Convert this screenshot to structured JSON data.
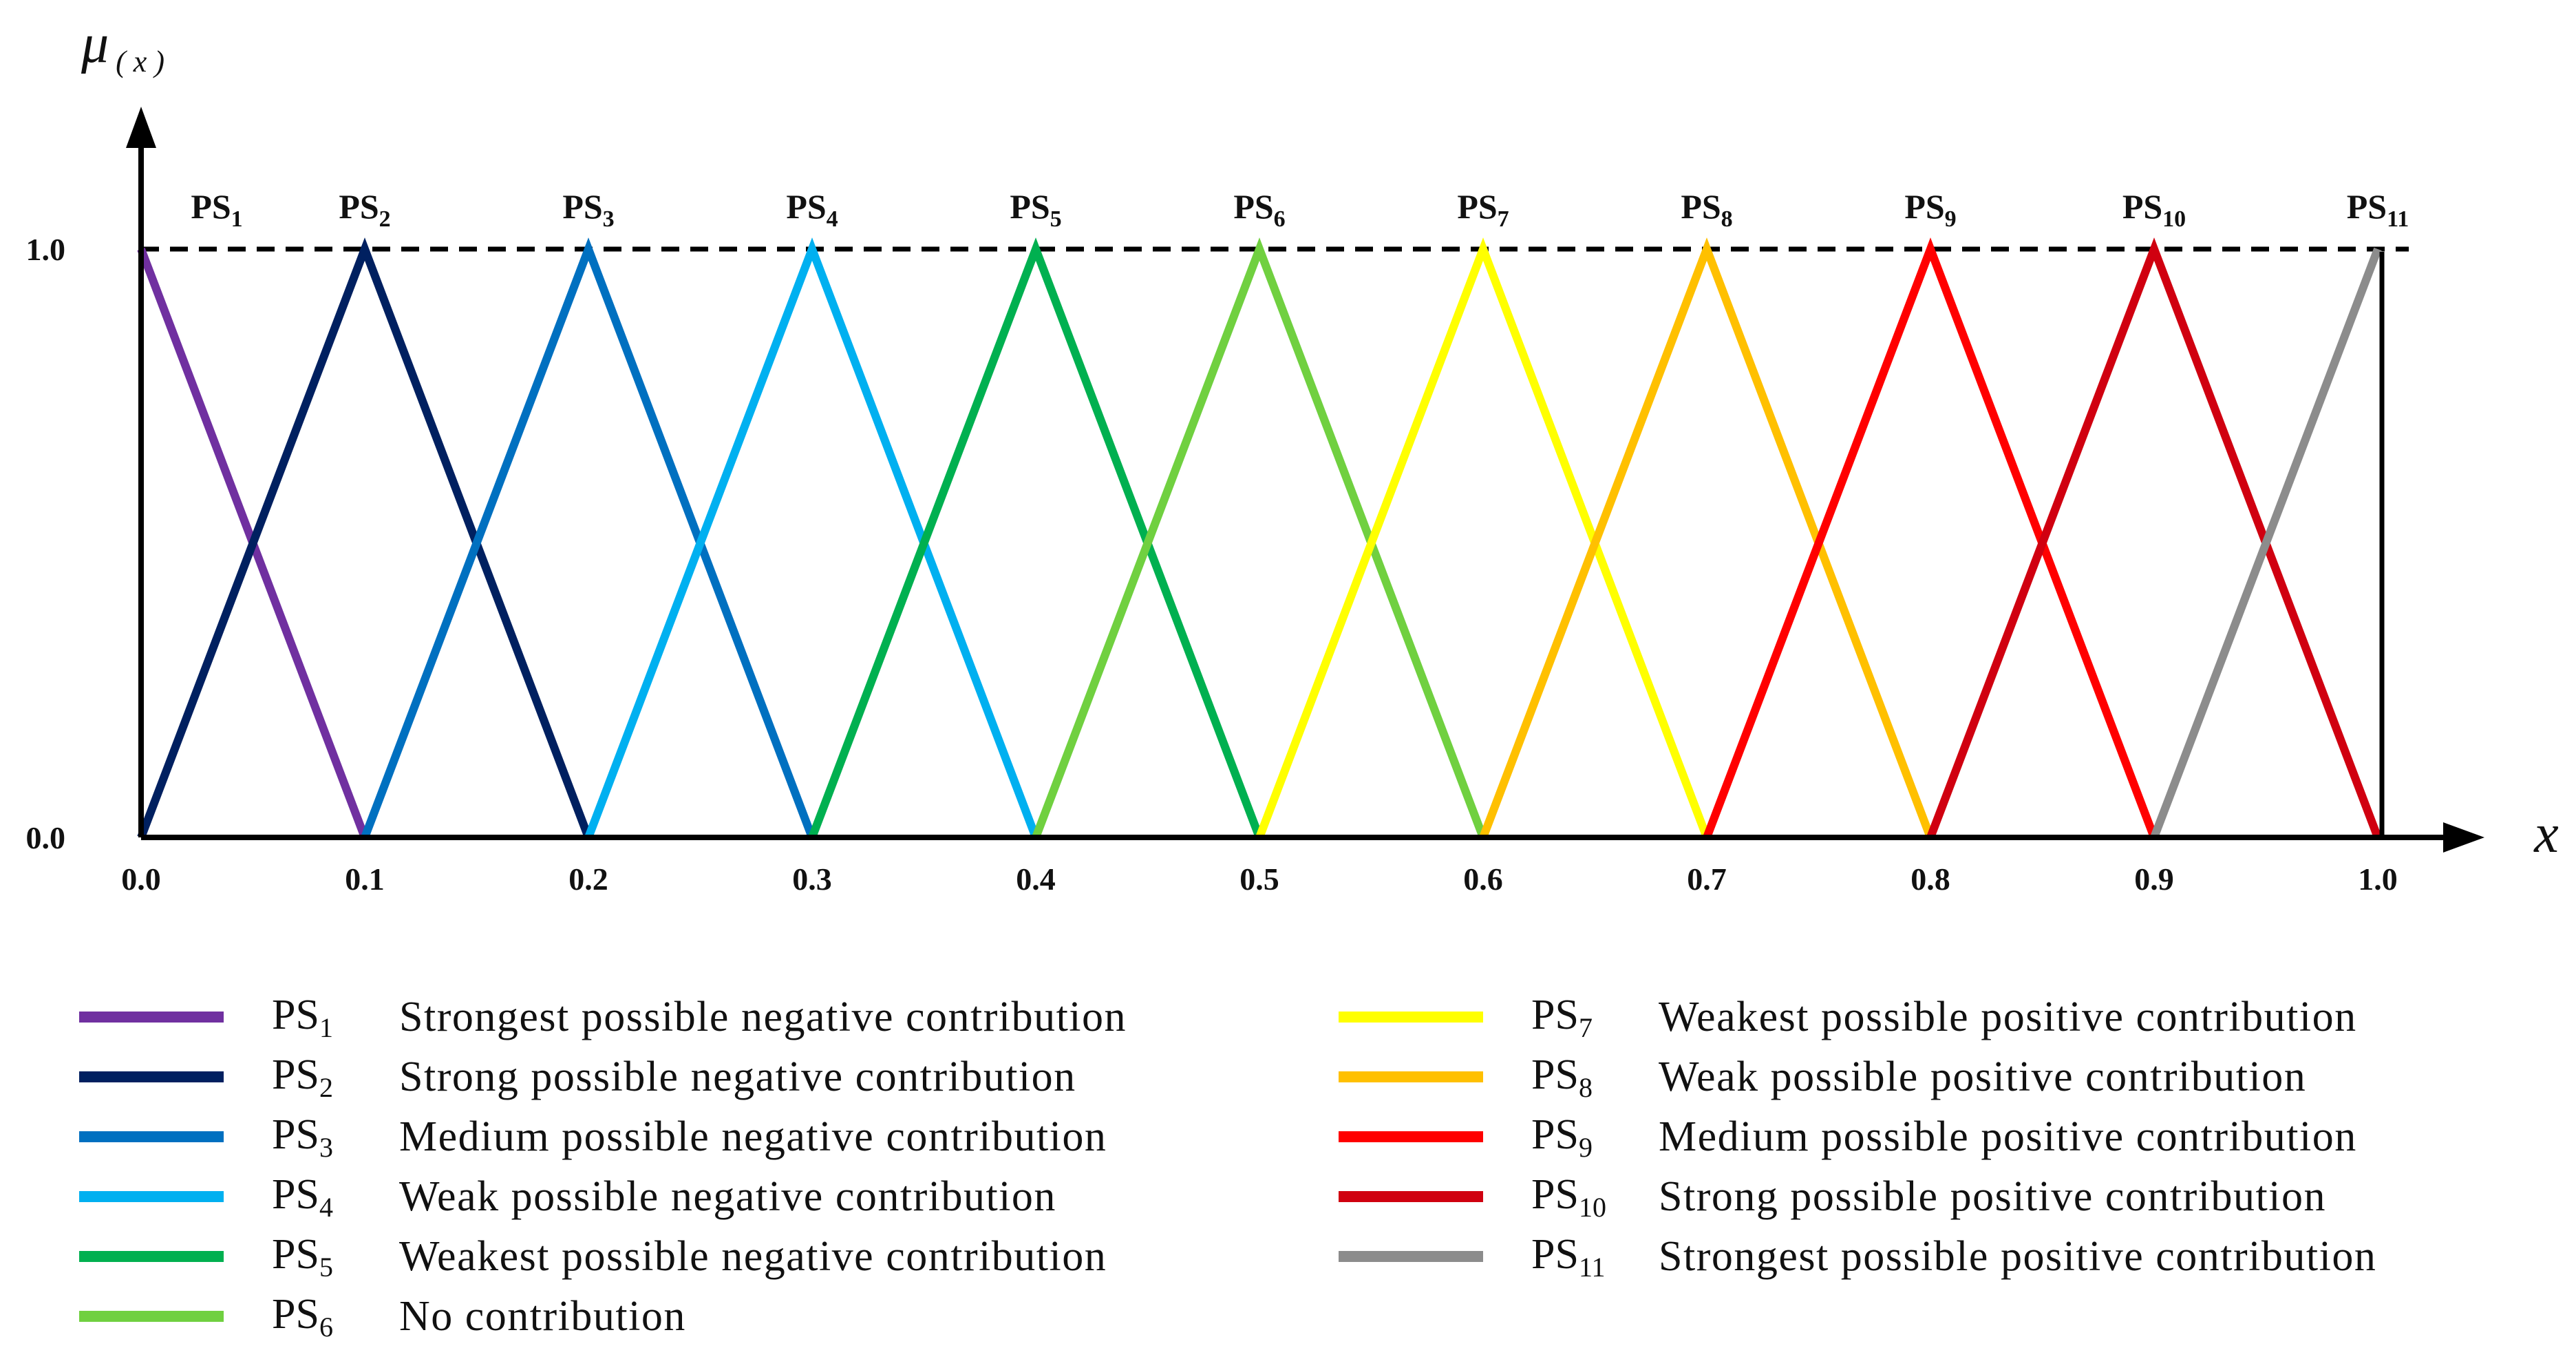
{
  "chart_data": {
    "type": "line",
    "title": "",
    "xlabel": "x",
    "ylabel_symbol": "μ",
    "ylabel_sub": "( x )",
    "xlim": [
      0,
      1.0
    ],
    "ylim": [
      0,
      1.0
    ],
    "x_ticks": [
      "0.0",
      "0.1",
      "0.2",
      "0.3",
      "0.4",
      "0.5",
      "0.6",
      "0.7",
      "0.8",
      "0.9",
      "1.0"
    ],
    "y_ticks": [
      "0.0",
      "1.0"
    ],
    "reference_line": {
      "y": 1.0,
      "style": "dashed"
    },
    "series": [
      {
        "name": "PS",
        "sub": "1",
        "description": "Strongest possible negative contribution",
        "color": "#7030A0",
        "x": [
          0.0,
          0.1
        ],
        "y": [
          1,
          0
        ]
      },
      {
        "name": "PS",
        "sub": "2",
        "description": "Strong possible negative contribution",
        "color": "#002060",
        "x": [
          0.0,
          0.1,
          0.2
        ],
        "y": [
          0,
          1,
          0
        ]
      },
      {
        "name": "PS",
        "sub": "3",
        "description": "Medium possible negative contribution",
        "color": "#0070C0",
        "x": [
          0.1,
          0.2,
          0.3
        ],
        "y": [
          0,
          1,
          0
        ]
      },
      {
        "name": "PS",
        "sub": "4",
        "description": "Weak possible negative contribution",
        "color": "#00B0F0",
        "x": [
          0.2,
          0.3,
          0.4
        ],
        "y": [
          0,
          1,
          0
        ]
      },
      {
        "name": "PS",
        "sub": "5",
        "description": "Weakest possible negative contribution",
        "color": "#00B050",
        "x": [
          0.3,
          0.4,
          0.5
        ],
        "y": [
          0,
          1,
          0
        ]
      },
      {
        "name": "PS",
        "sub": "6",
        "description": "No contribution",
        "color": "#70D040",
        "x": [
          0.4,
          0.5,
          0.6
        ],
        "y": [
          0,
          1,
          0
        ]
      },
      {
        "name": "PS",
        "sub": "7",
        "description": "Weakest possible positive contribution",
        "color": "#FFFF00",
        "x": [
          0.5,
          0.6,
          0.7
        ],
        "y": [
          0,
          1,
          0
        ]
      },
      {
        "name": "PS",
        "sub": "8",
        "description": "Weak possible positive contribution",
        "color": "#FFC000",
        "x": [
          0.6,
          0.7,
          0.8
        ],
        "y": [
          0,
          1,
          0
        ]
      },
      {
        "name": "PS",
        "sub": "9",
        "description": "Medium possible positive contribution",
        "color": "#FF0000",
        "x": [
          0.7,
          0.8,
          0.9
        ],
        "y": [
          0,
          1,
          0
        ]
      },
      {
        "name": "PS",
        "sub": "10",
        "description": "Strong possible positive contribution",
        "color": "#D00010",
        "x": [
          0.8,
          0.9,
          1.0
        ],
        "y": [
          0,
          1,
          0
        ]
      },
      {
        "name": "PS",
        "sub": "11",
        "description": "Strongest possible positive contribution",
        "color": "#8C8C8C",
        "x": [
          0.9,
          1.0
        ],
        "y": [
          0,
          1
        ]
      }
    ],
    "legend_position": "bottom"
  }
}
